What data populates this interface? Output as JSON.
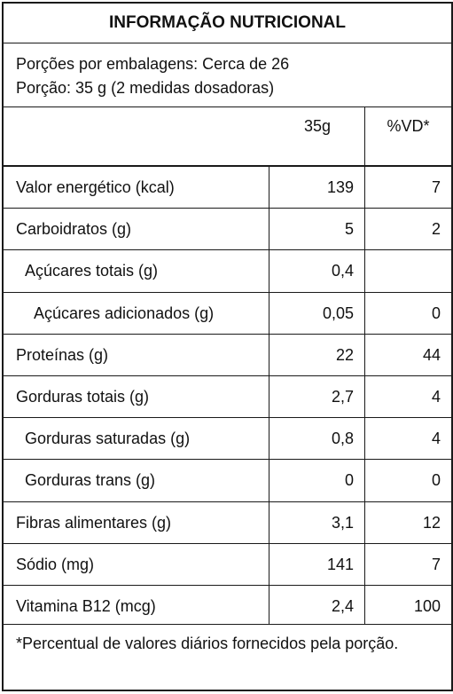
{
  "title": "INFORMAÇÃO NUTRICIONAL",
  "servings_per_package": "Porções por embalagens: Cerca de 26",
  "serving_size": "Porção: 35 g (2 medidas dosadoras)",
  "columns": {
    "amount": "35g",
    "daily_value": "%VD*"
  },
  "rows": [
    {
      "label": "Valor energético (kcal)",
      "amount": "139",
      "dv": "7",
      "indent": 0
    },
    {
      "label": "Carboidratos (g)",
      "amount": "5",
      "dv": "2",
      "indent": 0
    },
    {
      "label": "Açúcares totais (g)",
      "amount": "0,4",
      "dv": "",
      "indent": 1
    },
    {
      "label": "Açúcares adicionados (g)",
      "amount": "0,05",
      "dv": "0",
      "indent": 2
    },
    {
      "label": "Proteínas (g)",
      "amount": "22",
      "dv": "44",
      "indent": 0
    },
    {
      "label": "Gorduras totais (g)",
      "amount": "2,7",
      "dv": "4",
      "indent": 0
    },
    {
      "label": "Gorduras saturadas (g)",
      "amount": "0,8",
      "dv": "4",
      "indent": 1
    },
    {
      "label": "Gorduras trans (g)",
      "amount": "0",
      "dv": "0",
      "indent": 1
    },
    {
      "label": "Fibras alimentares (g)",
      "amount": "3,1",
      "dv": "12",
      "indent": 0
    },
    {
      "label": "Sódio (mg)",
      "amount": "141",
      "dv": "7",
      "indent": 0
    },
    {
      "label": "Vitamina B12 (mcg)",
      "amount": "2,4",
      "dv": "100",
      "indent": 0
    }
  ],
  "footnote": "*Percentual de valores diários fornecidos pela porção."
}
